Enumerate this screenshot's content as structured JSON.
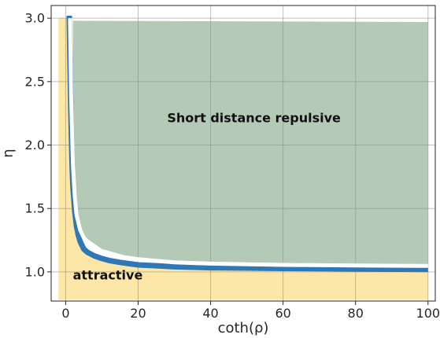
{
  "chart_data": {
    "type": "area",
    "xlabel": "coth(ρ)",
    "ylabel": "η",
    "xlim": [
      -4,
      102
    ],
    "ylim": [
      0.77,
      3.1
    ],
    "grid": true,
    "xticks": [
      0,
      20,
      40,
      60,
      80,
      100
    ],
    "yticks": [
      1.0,
      1.5,
      2.0,
      2.5,
      3.0
    ],
    "xtick_labels": [
      "0",
      "20",
      "40",
      "60",
      "80",
      "100"
    ],
    "ytick_labels": [
      "1.0",
      "1.5",
      "2.0",
      "2.5",
      "3.0"
    ],
    "regions": [
      {
        "label": "attractive",
        "color": "#fde7a8",
        "x": [
          -2,
          1.5,
          3,
          5,
          10,
          20,
          50,
          100,
          100,
          -2
        ],
        "y": [
          3.0,
          3.0,
          1.35,
          1.2,
          1.1,
          1.06,
          1.03,
          1.02,
          0.78,
          0.78
        ],
        "label_pos": [
          2,
          0.94
        ]
      },
      {
        "label": "Short distance repulsive",
        "color": "#b5c9b7",
        "x": [
          2,
          100,
          100,
          50,
          20,
          10,
          5,
          3,
          2
        ],
        "y": [
          2.98,
          2.97,
          1.05,
          1.06,
          1.1,
          1.18,
          1.28,
          1.45,
          1.7
        ],
        "label_pos": [
          28,
          2.18
        ]
      }
    ],
    "series": [
      {
        "color": "#2f78b7",
        "style": "solid",
        "x": [
          1.0,
          1.2,
          1.4,
          1.6,
          1.8,
          2.0,
          2.5,
          3,
          3.5,
          4,
          5,
          6,
          7,
          8,
          10,
          12,
          15,
          20,
          25,
          30,
          40,
          50,
          60,
          70,
          80,
          90,
          100
        ],
        "y": [
          3.02,
          2.67,
          2.3,
          2.05,
          1.82,
          1.68,
          1.48,
          1.36,
          1.29,
          1.24,
          1.18,
          1.155,
          1.14,
          1.125,
          1.105,
          1.09,
          1.075,
          1.055,
          1.048,
          1.04,
          1.033,
          1.03,
          1.027,
          1.025,
          1.023,
          1.021,
          1.02
        ]
      },
      {
        "color": "#ffffff",
        "style": "solid",
        "x": [
          1.2,
          1.5,
          2,
          2.5,
          3,
          4,
          5,
          7,
          10,
          15,
          20,
          30,
          40,
          60,
          80,
          100
        ],
        "y": [
          3.0,
          2.4,
          1.85,
          1.6,
          1.45,
          1.33,
          1.27,
          1.21,
          1.16,
          1.12,
          1.1,
          1.075,
          1.065,
          1.055,
          1.05,
          1.047
        ]
      }
    ]
  }
}
